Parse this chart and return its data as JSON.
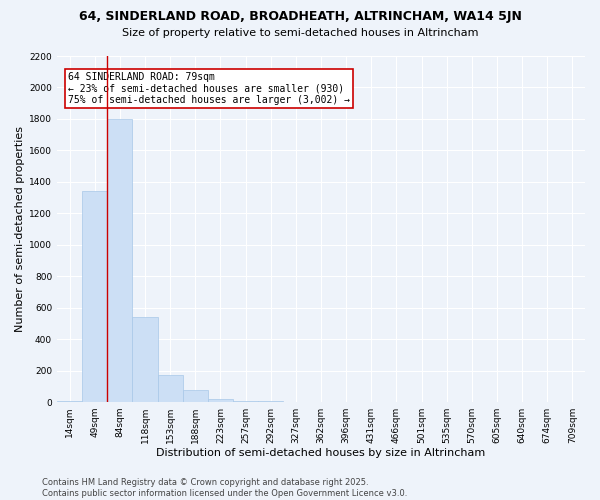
{
  "title": "64, SINDERLAND ROAD, BROADHEATH, ALTRINCHAM, WA14 5JN",
  "subtitle": "Size of property relative to semi-detached houses in Altrincham",
  "xlabel": "Distribution of semi-detached houses by size in Altrincham",
  "ylabel": "Number of semi-detached properties",
  "categories": [
    "14sqm",
    "49sqm",
    "84sqm",
    "118sqm",
    "153sqm",
    "188sqm",
    "223sqm",
    "257sqm",
    "292sqm",
    "327sqm",
    "362sqm",
    "396sqm",
    "431sqm",
    "466sqm",
    "501sqm",
    "535sqm",
    "570sqm",
    "605sqm",
    "640sqm",
    "674sqm",
    "709sqm"
  ],
  "values": [
    8,
    1340,
    1800,
    540,
    175,
    75,
    20,
    8,
    4,
    2,
    2,
    2,
    2,
    2,
    2,
    2,
    2,
    2,
    2,
    2,
    2
  ],
  "bar_color": "#ccdff5",
  "bar_edge_color": "#a8c8e8",
  "property_line_x": 1.5,
  "property_line_color": "#cc0000",
  "annotation_text": "64 SINDERLAND ROAD: 79sqm\n← 23% of semi-detached houses are smaller (930)\n75% of semi-detached houses are larger (3,002) →",
  "annotation_box_color": "#ffffff",
  "annotation_box_edge_color": "#cc0000",
  "ylim": [
    0,
    2200
  ],
  "yticks": [
    0,
    200,
    400,
    600,
    800,
    1000,
    1200,
    1400,
    1600,
    1800,
    2000,
    2200
  ],
  "footer_line1": "Contains HM Land Registry data © Crown copyright and database right 2025.",
  "footer_line2": "Contains public sector information licensed under the Open Government Licence v3.0.",
  "bg_color": "#eef3fa",
  "grid_color": "#ffffff",
  "title_fontsize": 9,
  "subtitle_fontsize": 8,
  "axis_label_fontsize": 8,
  "tick_fontsize": 6.5,
  "annotation_fontsize": 7,
  "footer_fontsize": 6
}
